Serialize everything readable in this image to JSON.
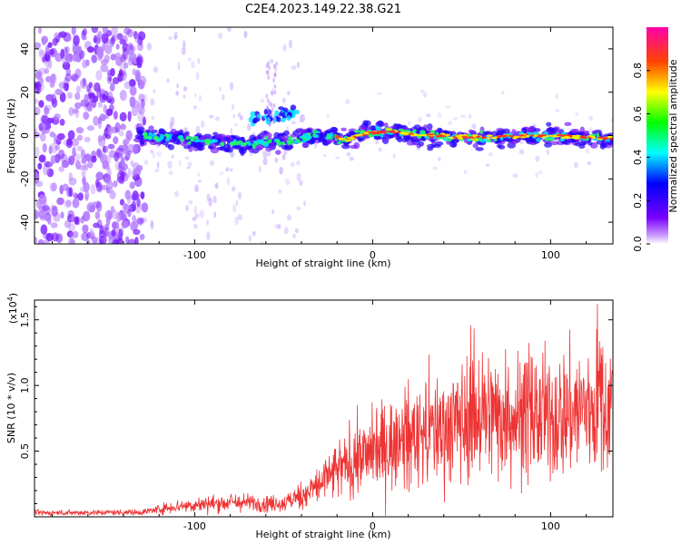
{
  "title": "C2E4.2023.149.22.38.G21",
  "chart_data": [
    {
      "type": "heatmap",
      "name": "spectrogram",
      "xlabel": "Height of straight line (km)",
      "ylabel": "Frequency (Hz)",
      "xlim": [
        -190,
        135
      ],
      "ylim": [
        -50,
        50
      ],
      "x_ticks": [
        -100,
        0,
        100
      ],
      "x_tick_labels": [
        "-100",
        "0",
        "100"
      ],
      "y_ticks": [
        -40,
        -20,
        0,
        20,
        40
      ],
      "y_tick_labels": [
        "-40",
        "-20",
        "0",
        "20",
        "40"
      ],
      "colorbar": {
        "label": "Normalized spectral amplitude",
        "range": [
          0,
          1
        ],
        "ticks": [
          0.0,
          0.2,
          0.4,
          0.6,
          0.8
        ],
        "tick_labels": [
          "0.0",
          "0.2",
          "0.4",
          "0.6",
          "0.8"
        ],
        "colors": [
          "#ffffff",
          "#7700ff",
          "#0000ff",
          "#00ffff",
          "#00ff00",
          "#ffff00",
          "#ff0000",
          "#ff00aa"
        ]
      },
      "ridge": [
        {
          "x": -130,
          "f": 0
        },
        {
          "x": -110,
          "f": -2
        },
        {
          "x": -90,
          "f": -3
        },
        {
          "x": -70,
          "f": -4
        },
        {
          "x": -55,
          "f": -3
        },
        {
          "x": -40,
          "f": -1
        },
        {
          "x": -30,
          "f": 1
        },
        {
          "x": -15,
          "f": -2
        },
        {
          "x": -5,
          "f": 1
        },
        {
          "x": 10,
          "f": 2
        },
        {
          "x": 30,
          "f": 0
        },
        {
          "x": 60,
          "f": -1
        },
        {
          "x": 90,
          "f": 0
        },
        {
          "x": 120,
          "f": -1
        },
        {
          "x": 135,
          "f": -1
        }
      ],
      "secondary_track": [
        {
          "x": -62,
          "f": 8
        },
        {
          "x": -48,
          "f": 10
        }
      ]
    },
    {
      "type": "line",
      "name": "snr",
      "xlabel": "Height of straight line (km)",
      "ylabel": "SNR (10 * v/v)",
      "y_scale_label": "(x10",
      "y_scale_exponent": "4",
      "y_scale_suffix": ")",
      "xlim": [
        -190,
        135
      ],
      "ylim": [
        0,
        16500
      ],
      "x_ticks": [
        -100,
        0,
        100
      ],
      "x_tick_labels": [
        "-100",
        "0",
        "100"
      ],
      "y_ticks": [
        5000,
        10000,
        15000
      ],
      "y_tick_labels": [
        "0.5",
        "1.0",
        "1.5"
      ],
      "color": "#ee3333",
      "envelope": [
        {
          "x": -190,
          "y": 300
        },
        {
          "x": -130,
          "y": 350
        },
        {
          "x": -110,
          "y": 800
        },
        {
          "x": -80,
          "y": 1100
        },
        {
          "x": -50,
          "y": 1000
        },
        {
          "x": -35,
          "y": 2000
        },
        {
          "x": -20,
          "y": 3500
        },
        {
          "x": 0,
          "y": 5000
        },
        {
          "x": 20,
          "y": 6000
        },
        {
          "x": 40,
          "y": 6800
        },
        {
          "x": 60,
          "y": 7800
        },
        {
          "x": 80,
          "y": 7700
        },
        {
          "x": 100,
          "y": 7500
        },
        {
          "x": 120,
          "y": 8300
        },
        {
          "x": 135,
          "y": 8600
        }
      ],
      "peak_value": 16200
    }
  ]
}
